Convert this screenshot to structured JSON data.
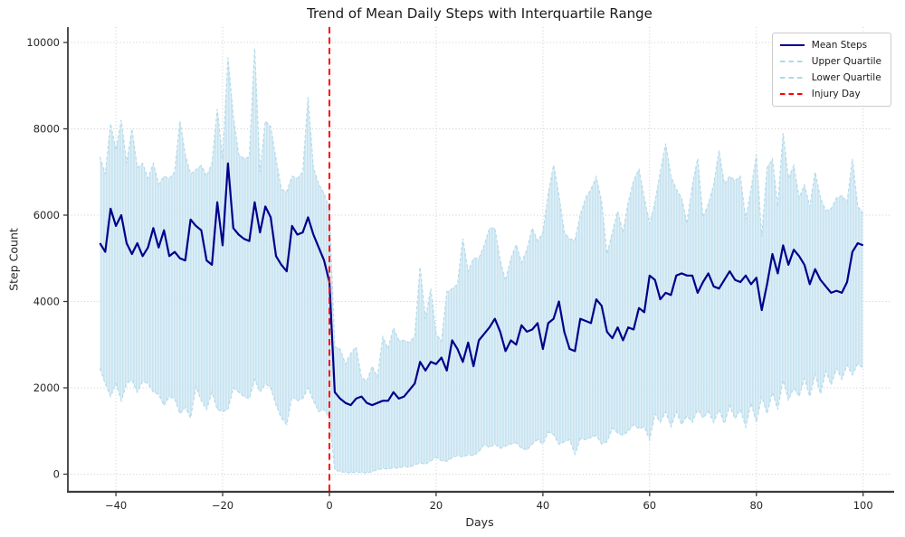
{
  "chart_data": {
    "type": "line",
    "title": "Trend of Mean Daily Steps with Interquartile Range",
    "xlabel": "Days",
    "ylabel": "Step Count",
    "grid": true,
    "legend_position": "upper-right",
    "xlim": [
      -49,
      105.3
    ],
    "ylim": [
      -408,
      10355
    ],
    "xticks": [
      -40,
      -20,
      0,
      20,
      40,
      60,
      80,
      100
    ],
    "yticks": [
      0,
      2000,
      4000,
      6000,
      8000,
      10000
    ],
    "injury_day": 0,
    "colors": {
      "mean_line": "#00008b",
      "band_base": "#dceef6",
      "band_stripe": "#c3e2f0",
      "quartile_edge": "#b5dbea",
      "quartile_legend": "#add8e6",
      "injury_line": "#ff0000",
      "grid": "#cccccc",
      "spine": "#3b3b3b",
      "text": "#262626"
    },
    "legend_items": [
      {
        "label": "Mean Steps",
        "color": "#00008b",
        "style": "solid"
      },
      {
        "label": "Upper Quartile",
        "color": "#add8e6",
        "style": "dashed"
      },
      {
        "label": "Lower Quartile",
        "color": "#add8e6",
        "style": "dashed"
      },
      {
        "label": "Injury Day",
        "color": "#ff0000",
        "style": "dashed"
      }
    ],
    "x": [
      -43,
      -42,
      -41,
      -40,
      -39,
      -38,
      -37,
      -36,
      -35,
      -34,
      -33,
      -32,
      -31,
      -30,
      -29,
      -28,
      -27,
      -26,
      -25,
      -24,
      -23,
      -22,
      -21,
      -20,
      -19,
      -18,
      -17,
      -16,
      -15,
      -14,
      -13,
      -12,
      -11,
      -10,
      -9,
      -8,
      -7,
      -6,
      -5,
      -4,
      -3,
      -2,
      -1,
      0,
      1,
      2,
      3,
      4,
      5,
      6,
      7,
      8,
      9,
      10,
      11,
      12,
      13,
      14,
      15,
      16,
      17,
      18,
      19,
      20,
      21,
      22,
      23,
      24,
      25,
      26,
      27,
      28,
      29,
      30,
      31,
      32,
      33,
      34,
      35,
      36,
      37,
      38,
      39,
      40,
      41,
      42,
      43,
      44,
      45,
      46,
      47,
      48,
      49,
      50,
      51,
      52,
      53,
      54,
      55,
      56,
      57,
      58,
      59,
      60,
      61,
      62,
      63,
      64,
      65,
      66,
      67,
      68,
      69,
      70,
      71,
      72,
      73,
      74,
      75,
      76,
      77,
      78,
      79,
      80,
      81,
      82,
      83,
      84,
      85,
      86,
      87,
      88,
      89,
      90,
      91,
      92,
      93,
      94,
      95,
      96,
      97,
      98,
      99,
      100
    ],
    "series": [
      {
        "name": "Mean Steps",
        "values": [
          5350,
          5150,
          6150,
          5750,
          6000,
          5350,
          5100,
          5350,
          5050,
          5250,
          5700,
          5250,
          5650,
          5050,
          5150,
          5000,
          4950,
          5900,
          5750,
          5650,
          4950,
          4850,
          6300,
          5300,
          7200,
          5700,
          5550,
          5450,
          5400,
          6300,
          5600,
          6200,
          5950,
          5050,
          4850,
          4700,
          5750,
          5550,
          5600,
          5950,
          5550,
          5250,
          4950,
          4450,
          1900,
          1750,
          1650,
          1600,
          1750,
          1800,
          1650,
          1600,
          1650,
          1700,
          1700,
          1900,
          1750,
          1800,
          1950,
          2100,
          2600,
          2400,
          2600,
          2550,
          2700,
          2400,
          3100,
          2900,
          2600,
          3050,
          2500,
          3100,
          3250,
          3400,
          3600,
          3300,
          2850,
          3100,
          3000,
          3450,
          3300,
          3350,
          3500,
          2900,
          3500,
          3600,
          4000,
          3300,
          2900,
          2850,
          3600,
          3550,
          3500,
          4050,
          3900,
          3300,
          3150,
          3400,
          3100,
          3400,
          3350,
          3850,
          3750,
          4600,
          4500,
          4050,
          4200,
          4150,
          4600,
          4650,
          4600,
          4600,
          4200,
          4450,
          4650,
          4350,
          4300,
          4500,
          4700,
          4500,
          4450,
          4600,
          4400,
          4550,
          3800,
          4400,
          5100,
          4650,
          5300,
          4850,
          5200,
          5050,
          4850,
          4400,
          4750,
          4500,
          4350,
          4200,
          4250,
          4200,
          4450,
          5150,
          5350,
          5300
        ]
      },
      {
        "name": "Upper Quartile",
        "values": [
          7350,
          6950,
          8120,
          7500,
          8200,
          7200,
          8000,
          7100,
          7200,
          6850,
          7200,
          6720,
          6900,
          6850,
          7000,
          8180,
          7400,
          6950,
          7050,
          7150,
          6900,
          7200,
          8460,
          7300,
          9650,
          8300,
          7400,
          7310,
          7350,
          9860,
          7000,
          8180,
          8050,
          7300,
          6600,
          6540,
          6900,
          6850,
          7000,
          8730,
          7100,
          6720,
          6500,
          6150,
          2950,
          2900,
          2550,
          2800,
          2950,
          2250,
          2150,
          2500,
          2250,
          3180,
          2900,
          3390,
          3100,
          3100,
          3050,
          3200,
          4800,
          3600,
          4300,
          3250,
          3080,
          4220,
          4300,
          4400,
          5460,
          4700,
          5000,
          5000,
          5300,
          5700,
          5700,
          4950,
          4480,
          5000,
          5320,
          4900,
          5200,
          5700,
          5400,
          5600,
          6500,
          7160,
          6470,
          5600,
          5450,
          5420,
          6000,
          6400,
          6600,
          6890,
          6300,
          5100,
          5600,
          6090,
          5600,
          6300,
          6800,
          7060,
          6400,
          5800,
          6300,
          7000,
          7660,
          6900,
          6600,
          6400,
          5800,
          6700,
          7310,
          5950,
          6260,
          6700,
          7500,
          6720,
          6900,
          6800,
          6900,
          5900,
          6600,
          7400,
          5500,
          7100,
          7300,
          6200,
          7900,
          6850,
          7150,
          6400,
          6700,
          6200,
          7000,
          6400,
          6100,
          6150,
          6400,
          6450,
          6300,
          7300,
          6200,
          6050
        ]
      },
      {
        "name": "Lower Quartile",
        "values": [
          2450,
          2100,
          1800,
          2100,
          1700,
          2100,
          2180,
          1900,
          2150,
          2100,
          1900,
          1850,
          1590,
          1800,
          1750,
          1400,
          1550,
          1300,
          2030,
          1700,
          1500,
          1900,
          1500,
          1450,
          1500,
          2000,
          1900,
          1800,
          1750,
          2200,
          1900,
          2100,
          2000,
          1600,
          1300,
          1150,
          1800,
          1700,
          1750,
          2000,
          1700,
          1450,
          1500,
          1300,
          100,
          60,
          40,
          30,
          50,
          40,
          30,
          60,
          100,
          130,
          120,
          150,
          140,
          180,
          160,
          220,
          260,
          230,
          310,
          390,
          310,
          300,
          380,
          430,
          400,
          450,
          430,
          520,
          690,
          620,
          700,
          600,
          650,
          700,
          730,
          600,
          560,
          700,
          800,
          700,
          980,
          920,
          690,
          750,
          800,
          460,
          820,
          800,
          850,
          900,
          700,
          750,
          1070,
          950,
          900,
          1000,
          1150,
          1050,
          1100,
          800,
          1400,
          1200,
          1450,
          1100,
          1450,
          1150,
          1350,
          1200,
          1500,
          1300,
          1450,
          1200,
          1500,
          1170,
          1590,
          1280,
          1500,
          1090,
          1650,
          1200,
          1800,
          1400,
          1900,
          1500,
          2180,
          1720,
          2000,
          1800,
          2220,
          1800,
          2320,
          1860,
          2390,
          2070,
          2450,
          2200,
          2530,
          2300,
          2560,
          2450
        ]
      }
    ]
  }
}
